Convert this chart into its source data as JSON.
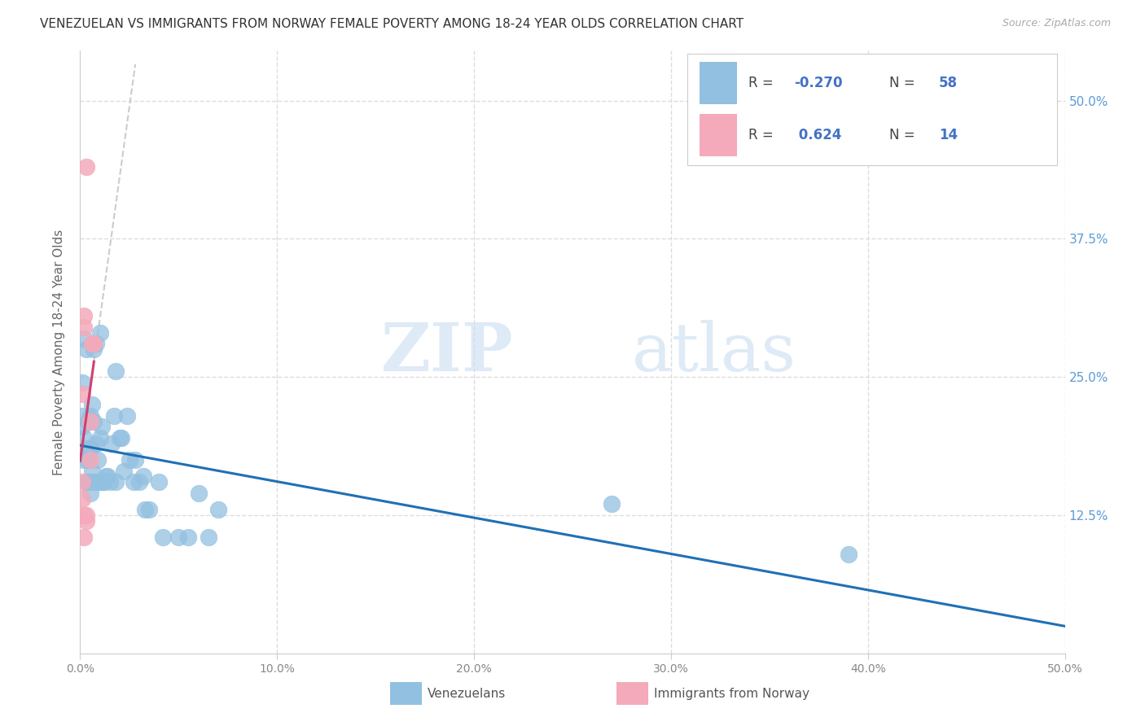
{
  "title": "VENEZUELAN VS IMMIGRANTS FROM NORWAY FEMALE POVERTY AMONG 18-24 YEAR OLDS CORRELATION CHART",
  "source": "Source: ZipAtlas.com",
  "ylabel": "Female Poverty Among 18-24 Year Olds",
  "ytick_labels": [
    "50.0%",
    "37.5%",
    "25.0%",
    "12.5%"
  ],
  "ytick_values": [
    0.5,
    0.375,
    0.25,
    0.125
  ],
  "xtick_labels": [
    "0.0%",
    "10.0%",
    "20.0%",
    "30.0%",
    "40.0%",
    "50.0%"
  ],
  "xtick_values": [
    0.0,
    0.1,
    0.2,
    0.3,
    0.4,
    0.5
  ],
  "xlim": [
    0.0,
    0.5
  ],
  "ylim": [
    0.0,
    0.545
  ],
  "legend_r_blue": "-0.270",
  "legend_n_blue": "58",
  "legend_r_pink": "0.624",
  "legend_n_pink": "14",
  "blue_color": "#92C0E0",
  "pink_color": "#F4AABB",
  "trend_blue_color": "#2070B4",
  "trend_pink_color": "#D04070",
  "watermark_zip": "ZIP",
  "watermark_atlas": "atlas",
  "background_color": "#FFFFFF",
  "grid_color": "#DDDDDD",
  "venezuelans_x": [
    0.001,
    0.001,
    0.002,
    0.003,
    0.004,
    0.004,
    0.005,
    0.005,
    0.006,
    0.007,
    0.007,
    0.008,
    0.009,
    0.01,
    0.01,
    0.011,
    0.011,
    0.012,
    0.013,
    0.014,
    0.015,
    0.016,
    0.017,
    0.018,
    0.02,
    0.021,
    0.022,
    0.024,
    0.025,
    0.027,
    0.028,
    0.03,
    0.032,
    0.033,
    0.035,
    0.04,
    0.042,
    0.05,
    0.055,
    0.06,
    0.065,
    0.07,
    0.001,
    0.002,
    0.002,
    0.003,
    0.003,
    0.004,
    0.005,
    0.006,
    0.007,
    0.008,
    0.009,
    0.01,
    0.012,
    0.018,
    0.27,
    0.39
  ],
  "venezuelans_y": [
    0.205,
    0.215,
    0.195,
    0.185,
    0.21,
    0.175,
    0.185,
    0.145,
    0.165,
    0.155,
    0.21,
    0.19,
    0.155,
    0.155,
    0.195,
    0.155,
    0.205,
    0.155,
    0.16,
    0.16,
    0.155,
    0.19,
    0.215,
    0.255,
    0.195,
    0.195,
    0.165,
    0.215,
    0.175,
    0.155,
    0.175,
    0.155,
    0.16,
    0.13,
    0.13,
    0.155,
    0.105,
    0.105,
    0.105,
    0.145,
    0.105,
    0.13,
    0.245,
    0.285,
    0.175,
    0.275,
    0.155,
    0.155,
    0.215,
    0.225,
    0.275,
    0.28,
    0.175,
    0.29,
    0.155,
    0.155,
    0.135,
    0.09
  ],
  "norway_x": [
    0.001,
    0.001,
    0.002,
    0.002,
    0.003,
    0.003,
    0.003,
    0.005,
    0.005,
    0.006,
    0.007,
    0.001,
    0.002,
    0.002
  ],
  "norway_y": [
    0.14,
    0.155,
    0.105,
    0.125,
    0.12,
    0.125,
    0.44,
    0.175,
    0.21,
    0.28,
    0.28,
    0.235,
    0.295,
    0.305
  ]
}
